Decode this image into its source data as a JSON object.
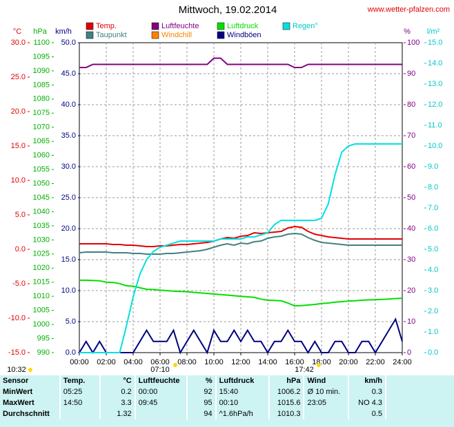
{
  "chart_data": {
    "type": "line",
    "title": "Mittwoch, 19.02.2014",
    "source": "www.wetter-pfalzen.com",
    "xlim": [
      0,
      24
    ],
    "xticks": [
      {
        "value": 0,
        "label": "00:00"
      },
      {
        "value": 2,
        "label": "02:00"
      },
      {
        "value": 4,
        "label": "04:00"
      },
      {
        "value": 6,
        "label": "06:00"
      },
      {
        "value": 8,
        "label": "08:00"
      },
      {
        "value": 10,
        "label": "10:00"
      },
      {
        "value": 12,
        "label": "12:00"
      },
      {
        "value": 14,
        "label": "14:00"
      },
      {
        "value": 16,
        "label": "16:00"
      },
      {
        "value": 18,
        "label": "18:00"
      },
      {
        "value": 20,
        "label": "20:00"
      },
      {
        "value": 22,
        "label": "22:00"
      },
      {
        "value": 24,
        "label": "24:00"
      }
    ],
    "grid": true,
    "axes": [
      {
        "label": "°C",
        "color": "#e00000",
        "lim": [
          -15,
          30
        ],
        "ticks": [
          {
            "value": -15,
            "label": "-15.0"
          },
          {
            "value": -10,
            "label": "-10.0"
          },
          {
            "value": -5,
            "label": "-5.0"
          },
          {
            "value": 0,
            "label": "0.0"
          },
          {
            "value": 5,
            "label": "5.0"
          },
          {
            "value": 10,
            "label": "10.0"
          },
          {
            "value": 15,
            "label": "15.0"
          },
          {
            "value": 20,
            "label": "20.0"
          },
          {
            "value": 25,
            "label": "25.0"
          },
          {
            "value": 30,
            "label": "30.0"
          }
        ]
      },
      {
        "label": "hPa",
        "color": "#00b000",
        "lim": [
          990,
          1100
        ],
        "ticks": [
          990,
          995,
          1000,
          1005,
          1010,
          1015,
          1020,
          1025,
          1030,
          1035,
          1040,
          1045,
          1050,
          1055,
          1060,
          1065,
          1070,
          1075,
          1080,
          1085,
          1090,
          1095,
          1100
        ]
      },
      {
        "label": "km/h",
        "color": "#000080",
        "lim": [
          0,
          50
        ],
        "ticks": [
          {
            "value": 0,
            "label": "0.0"
          },
          {
            "value": 5,
            "label": "5.0"
          },
          {
            "value": 10,
            "label": "10.0"
          },
          {
            "value": 15,
            "label": "15.0"
          },
          {
            "value": 20,
            "label": "20.0"
          },
          {
            "value": 25,
            "label": "25.0"
          },
          {
            "value": 30,
            "label": "30.0"
          },
          {
            "value": 35,
            "label": "35.0"
          },
          {
            "value": 40,
            "label": "40.0"
          },
          {
            "value": 45,
            "label": "45.0"
          },
          {
            "value": 50,
            "label": "50.0"
          }
        ]
      },
      {
        "label": "%",
        "color": "#800080",
        "lim": [
          0,
          100
        ],
        "ticks": [
          0,
          10,
          20,
          30,
          40,
          50,
          60,
          70,
          80,
          90,
          100
        ]
      },
      {
        "label": "l/m²",
        "color": "#00c8c8",
        "lim": [
          0,
          15
        ],
        "ticks": [
          {
            "value": 0,
            "label": "0.0"
          },
          {
            "value": 1,
            "label": "1.0"
          },
          {
            "value": 2,
            "label": "2.0"
          },
          {
            "value": 3,
            "label": "3.0"
          },
          {
            "value": 4,
            "label": "4.0"
          },
          {
            "value": 5,
            "label": "5.0"
          },
          {
            "value": 6,
            "label": "6.0"
          },
          {
            "value": 7,
            "label": "7.0"
          },
          {
            "value": 8,
            "label": "8.0"
          },
          {
            "value": 9,
            "label": "9.0"
          },
          {
            "value": 10,
            "label": "10.0"
          },
          {
            "value": 11,
            "label": "11.0"
          },
          {
            "value": 12,
            "label": "12.0"
          },
          {
            "value": 13,
            "label": "13.0"
          },
          {
            "value": 14,
            "label": "14.0"
          },
          {
            "value": 15,
            "label": "15.0"
          }
        ]
      }
    ],
    "x": [
      0,
      0.5,
      1,
      1.5,
      2,
      2.5,
      3,
      3.5,
      4,
      4.5,
      5,
      5.5,
      6,
      6.5,
      7,
      7.5,
      8,
      8.5,
      9,
      9.5,
      10,
      10.5,
      11,
      11.5,
      12,
      12.5,
      13,
      13.5,
      14,
      14.5,
      15,
      15.5,
      16,
      16.5,
      17,
      17.5,
      18,
      18.5,
      19,
      19.5,
      20,
      20.5,
      21,
      21.5,
      22,
      22.5,
      23,
      23.5,
      24
    ],
    "series": [
      {
        "name": "Temp.",
        "color": "#e00000",
        "axis": 0,
        "values": [
          0.8,
          0.8,
          0.8,
          0.8,
          0.8,
          0.7,
          0.7,
          0.6,
          0.6,
          0.5,
          0.4,
          0.4,
          0.5,
          0.5,
          0.6,
          0.7,
          0.7,
          0.8,
          0.9,
          1.0,
          1.2,
          1.5,
          1.7,
          1.6,
          1.9,
          2.0,
          2.4,
          2.3,
          2.4,
          2.5,
          2.6,
          3.1,
          3.3,
          3.2,
          2.6,
          2.2,
          2.0,
          1.8,
          1.7,
          1.6,
          1.5,
          1.5,
          1.5,
          1.5,
          1.5,
          1.5,
          1.5,
          1.5,
          1.5
        ]
      },
      {
        "name": "Taupunkt",
        "color": "#408080",
        "axis": 0,
        "values": [
          -0.5,
          -0.4,
          -0.4,
          -0.4,
          -0.4,
          -0.5,
          -0.5,
          -0.5,
          -0.6,
          -0.6,
          -0.7,
          -0.7,
          -0.7,
          -0.6,
          -0.6,
          -0.5,
          -0.4,
          -0.3,
          -0.2,
          0.0,
          0.3,
          0.6,
          0.8,
          0.6,
          0.9,
          0.8,
          1.1,
          1.2,
          1.6,
          1.8,
          1.9,
          2.2,
          2.3,
          2.2,
          1.7,
          1.3,
          1.0,
          0.9,
          0.8,
          0.7,
          0.6,
          0.6,
          0.6,
          0.6,
          0.6,
          0.6,
          0.6,
          0.6,
          0.6
        ]
      },
      {
        "name": "Luftfeuchte",
        "color": "#800080",
        "axis": 3,
        "values": [
          92,
          92,
          93,
          93,
          93,
          93,
          93,
          93,
          93,
          93,
          93,
          93,
          93,
          93,
          93,
          93,
          93,
          93,
          93,
          93,
          95,
          95,
          93,
          93,
          93,
          93,
          93,
          93,
          93,
          93,
          93,
          93,
          92,
          92,
          93,
          93,
          93,
          93,
          93,
          93,
          93,
          93,
          93,
          93,
          93,
          93,
          93,
          93,
          93
        ]
      },
      {
        "name": "Windchill",
        "color": "#ff8000",
        "axis": 0,
        "values": [
          null,
          null,
          null,
          null,
          null,
          null,
          null,
          null,
          null,
          null,
          null,
          null,
          null,
          null,
          null,
          null,
          null,
          null,
          null,
          null,
          null,
          null,
          null,
          null,
          null,
          null,
          null,
          null,
          null,
          null,
          null,
          null,
          null,
          null,
          null,
          null,
          null,
          null,
          null,
          null,
          null,
          null,
          null,
          null,
          null,
          null,
          null,
          null,
          null
        ]
      },
      {
        "name": "Luftdruck",
        "color": "#00e000",
        "axis": 1,
        "values": [
          1015.7,
          1015.7,
          1015.6,
          1015.5,
          1015.0,
          1014.9,
          1014.5,
          1013.7,
          1013.6,
          1013.0,
          1012.5,
          1012.4,
          1012.2,
          1012.0,
          1011.8,
          1011.7,
          1011.6,
          1011.4,
          1011.2,
          1011.0,
          1010.8,
          1010.6,
          1010.4,
          1010.2,
          1010.0,
          1009.8,
          1009.6,
          1009.0,
          1008.6,
          1008.5,
          1008.4,
          1007.6,
          1006.6,
          1006.7,
          1006.9,
          1007.1,
          1007.4,
          1007.6,
          1007.9,
          1008.1,
          1008.3,
          1008.4,
          1008.6,
          1008.7,
          1008.8,
          1008.9,
          1009.0,
          1009.2,
          1009.3
        ]
      },
      {
        "name": "Windböen",
        "color": "#000080",
        "axis": 2,
        "values": [
          0,
          1.8,
          0,
          1.8,
          0,
          0,
          0,
          0,
          0,
          1.8,
          3.6,
          1.8,
          1.8,
          1.8,
          3.6,
          0,
          1.8,
          3.6,
          1.8,
          0,
          3.6,
          1.8,
          1.8,
          3.6,
          1.8,
          3.6,
          1.8,
          1.8,
          0,
          1.8,
          1.8,
          3.6,
          1.8,
          1.8,
          0,
          1.8,
          0,
          0,
          1.8,
          1.8,
          0,
          0,
          1.8,
          1.8,
          0,
          1.8,
          3.6,
          5.4,
          1.8
        ]
      },
      {
        "name": "Regen°",
        "color": "#00e0e0",
        "axis": 4,
        "values": [
          0,
          0,
          0,
          0,
          0,
          0,
          0,
          1.3,
          2.7,
          3.8,
          4.5,
          4.9,
          5.1,
          5.2,
          5.3,
          5.4,
          5.4,
          5.4,
          5.4,
          5.4,
          5.4,
          5.5,
          5.5,
          5.5,
          5.5,
          5.6,
          5.6,
          5.7,
          5.8,
          6.2,
          6.4,
          6.4,
          6.4,
          6.4,
          6.4,
          6.4,
          6.5,
          7.2,
          8.6,
          9.7,
          10.0,
          10.1,
          10.1,
          10.1,
          10.1,
          10.1,
          10.1,
          10.1,
          10.1
        ]
      }
    ],
    "annotations": [
      "10:32",
      "07:10",
      "17:42"
    ]
  },
  "table": {
    "header": [
      "Sensor",
      "Temp.",
      "°C",
      "Luftfeuchte",
      "%",
      "Luftdruck",
      "hPa",
      "Wind",
      "km/h"
    ],
    "rows": [
      [
        "MinWert",
        "05:25",
        0.2,
        "00:00",
        92,
        "15:40",
        1006.2,
        "Ø 10 min.",
        0.3
      ],
      [
        "MaxWert",
        "14:50",
        3.3,
        "09:45",
        95,
        "00:10",
        1015.6,
        "23:05",
        "NO 4.3"
      ],
      [
        "Durchschnitt",
        null,
        1.32,
        null,
        94,
        "^1.6hPa/h",
        1010.3,
        null,
        0.5
      ]
    ]
  }
}
